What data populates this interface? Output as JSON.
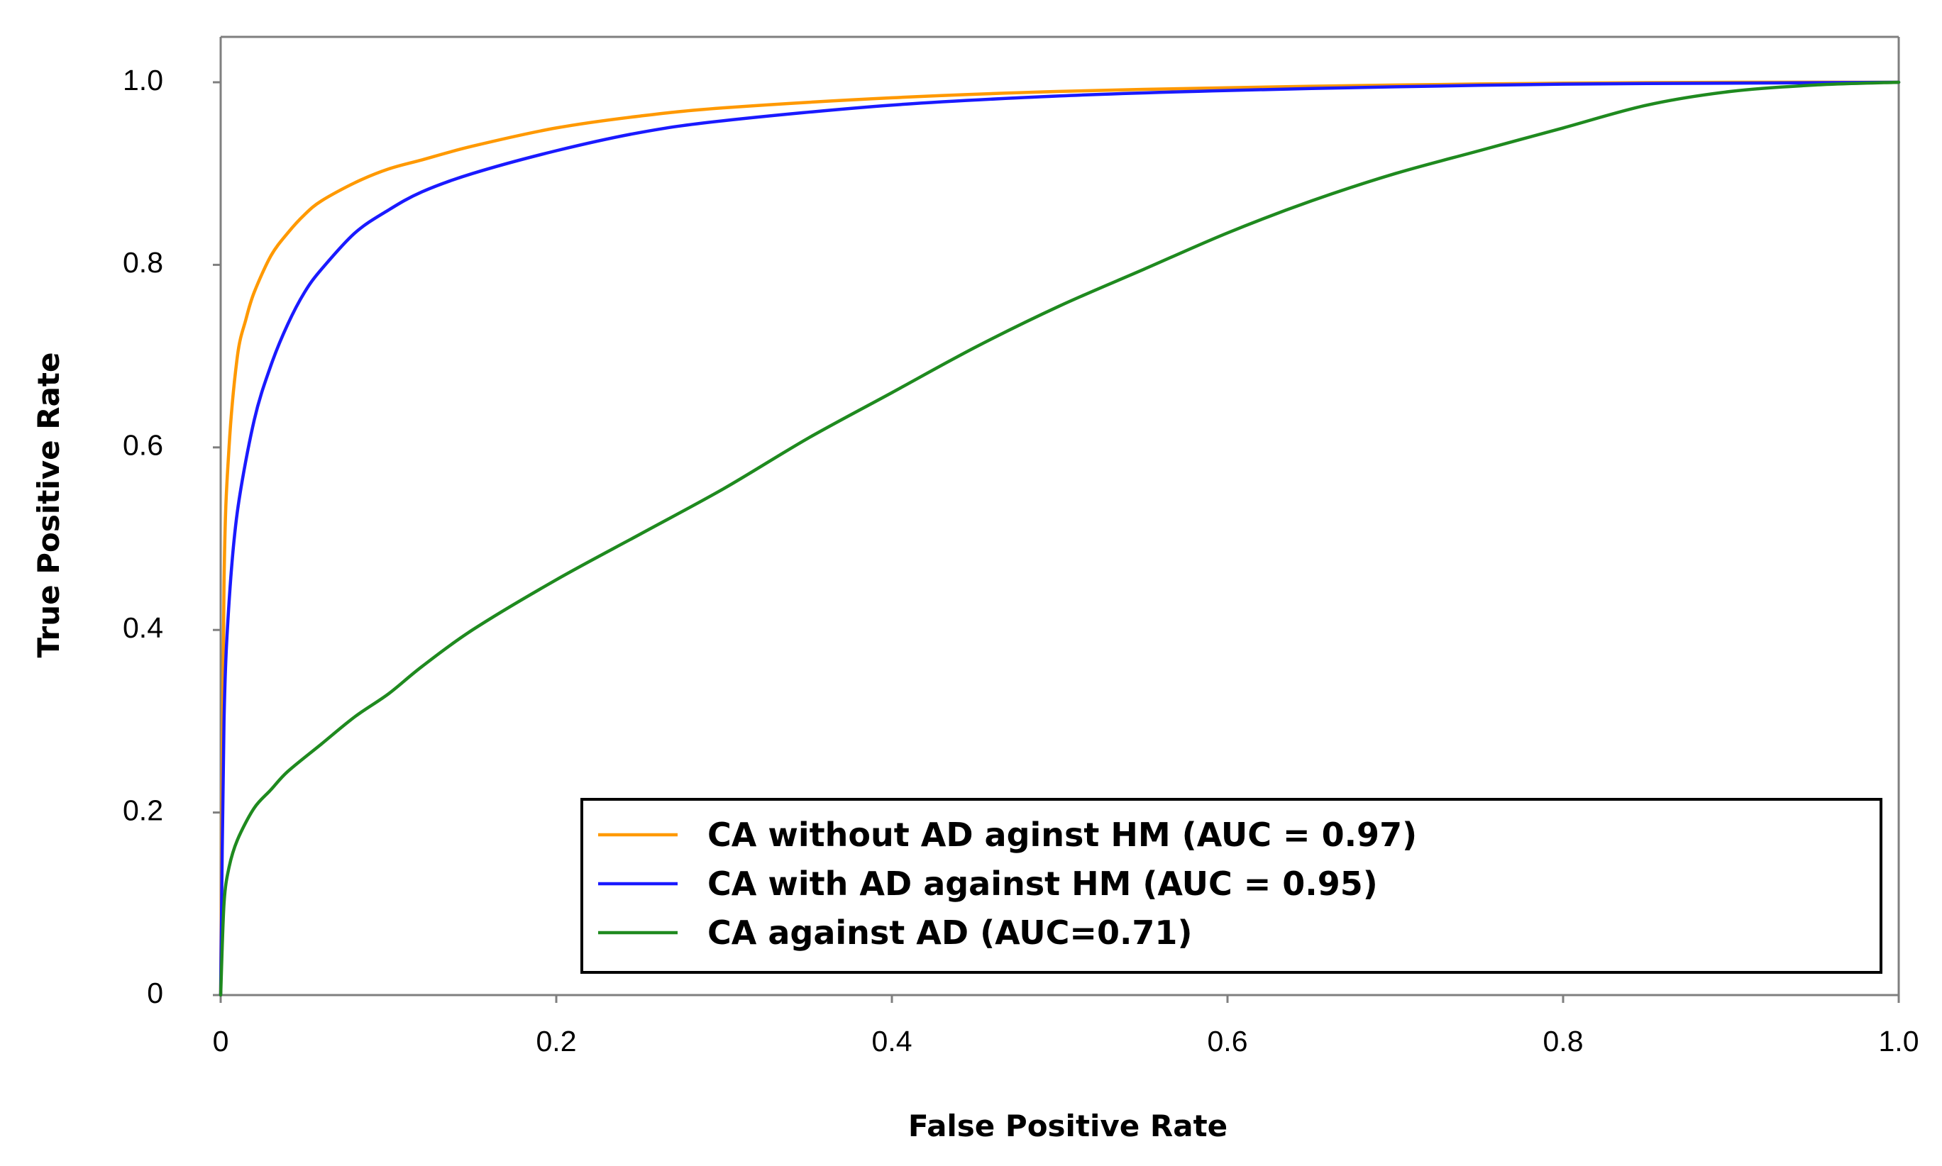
{
  "chart_data": {
    "type": "line",
    "title": "",
    "xlabel": "False Positive Rate",
    "ylabel": "True Positive Rate",
    "xlim": [
      0,
      1
    ],
    "ylim": [
      0,
      1
    ],
    "x_ticks": [
      {
        "value": 0,
        "label": "0"
      },
      {
        "value": 0.2,
        "label": "0.2"
      },
      {
        "value": 0.4,
        "label": "0.4"
      },
      {
        "value": 0.6,
        "label": "0.6"
      },
      {
        "value": 0.8,
        "label": "0.8"
      },
      {
        "value": 1.0,
        "label": "1.0"
      }
    ],
    "y_ticks": [
      {
        "value": 0,
        "label": "0"
      },
      {
        "value": 0.2,
        "label": "0.2"
      },
      {
        "value": 0.4,
        "label": "0.4"
      },
      {
        "value": 0.6,
        "label": "0.6"
      },
      {
        "value": 0.8,
        "label": "0.8"
      },
      {
        "value": 1.0,
        "label": "1.0"
      }
    ],
    "grid": false,
    "legend_position": "bottom-right",
    "series": [
      {
        "name": "CA without AD aginst HM (AUC = 0.97)",
        "color": "#FF9900",
        "x": [
          0,
          0.002,
          0.005,
          0.01,
          0.015,
          0.02,
          0.03,
          0.04,
          0.05,
          0.06,
          0.08,
          0.1,
          0.12,
          0.15,
          0.2,
          0.25,
          0.3,
          0.4,
          0.5,
          0.6,
          0.7,
          0.8,
          0.9,
          1.0
        ],
        "y": [
          0,
          0.45,
          0.6,
          0.7,
          0.74,
          0.77,
          0.81,
          0.835,
          0.855,
          0.87,
          0.89,
          0.905,
          0.915,
          0.93,
          0.95,
          0.963,
          0.972,
          0.983,
          0.99,
          0.994,
          0.997,
          0.999,
          1.0,
          1.0
        ]
      },
      {
        "name": "CA with AD against HM (AUC = 0.95)",
        "color": "#1A1AFF",
        "x": [
          0,
          0.002,
          0.005,
          0.01,
          0.02,
          0.03,
          0.04,
          0.05,
          0.06,
          0.08,
          0.1,
          0.12,
          0.15,
          0.2,
          0.25,
          0.3,
          0.4,
          0.5,
          0.6,
          0.7,
          0.8,
          0.9,
          1.0
        ],
        "y": [
          0,
          0.3,
          0.43,
          0.53,
          0.63,
          0.69,
          0.735,
          0.77,
          0.795,
          0.835,
          0.86,
          0.88,
          0.9,
          0.925,
          0.945,
          0.958,
          0.975,
          0.985,
          0.991,
          0.995,
          0.998,
          0.999,
          1.0
        ]
      },
      {
        "name": "CA against AD (AUC=0.71)",
        "color": "#1F8A1F",
        "x": [
          0,
          0.002,
          0.005,
          0.01,
          0.02,
          0.03,
          0.04,
          0.06,
          0.08,
          0.1,
          0.12,
          0.15,
          0.2,
          0.25,
          0.3,
          0.35,
          0.4,
          0.45,
          0.5,
          0.55,
          0.6,
          0.65,
          0.7,
          0.75,
          0.8,
          0.85,
          0.9,
          0.95,
          1.0
        ],
        "y": [
          0,
          0.1,
          0.14,
          0.17,
          0.205,
          0.225,
          0.245,
          0.275,
          0.305,
          0.33,
          0.36,
          0.4,
          0.455,
          0.505,
          0.555,
          0.61,
          0.66,
          0.71,
          0.755,
          0.795,
          0.835,
          0.87,
          0.9,
          0.925,
          0.95,
          0.975,
          0.99,
          0.997,
          1.0
        ]
      }
    ]
  }
}
